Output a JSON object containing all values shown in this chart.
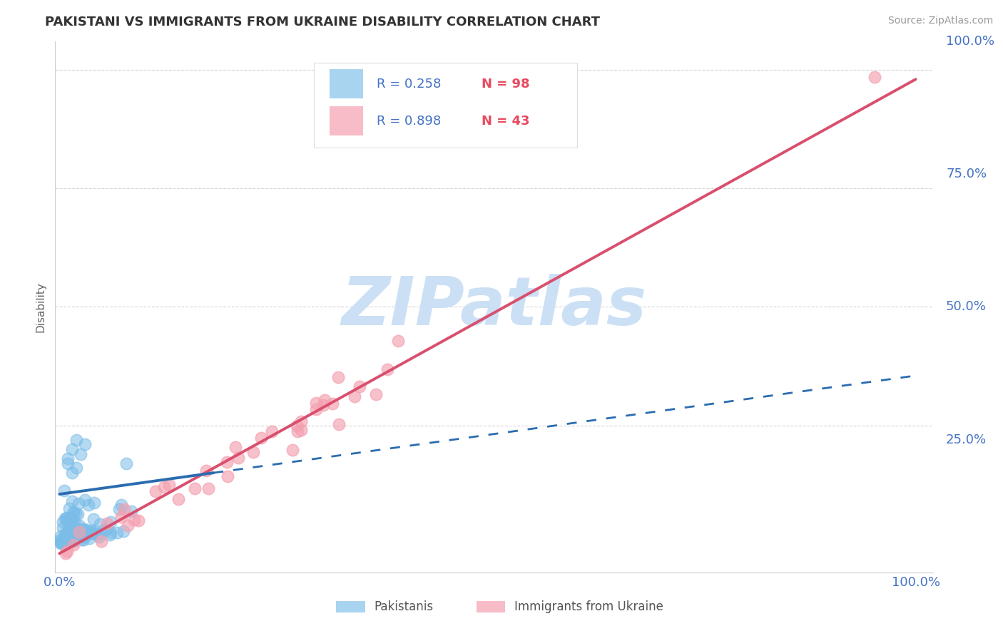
{
  "title": "PAKISTANI VS IMMIGRANTS FROM UKRAINE DISABILITY CORRELATION CHART",
  "source": "Source: ZipAtlas.com",
  "ylabel": "Disability",
  "pakistani_R": 0.258,
  "pakistani_N": 98,
  "ukraine_R": 0.898,
  "ukraine_N": 43,
  "pakistani_color": "#7abde8",
  "ukraine_color": "#f4a0b0",
  "pakistani_line_color": "#2b6cb0",
  "ukraine_line_color": "#d94f6e",
  "grid_color": "#cccccc",
  "title_color": "#333333",
  "axis_tick_color": "#4472c4",
  "legend_R_color": "#4472c4",
  "legend_N_color": "#e84a5f",
  "watermark_color": "#cce0f5",
  "background_color": "#ffffff"
}
